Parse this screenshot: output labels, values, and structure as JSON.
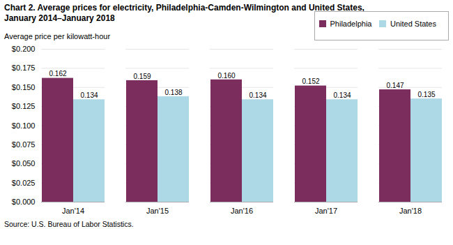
{
  "chart_data": {
    "type": "bar",
    "title": "Chart 2. Average prices for electricity, Philadelphia-Camden-Wilmington  and United States,",
    "subtitle": "January 2014–January 2018",
    "ylabel": "Average price per kilowatt-hour",
    "source": "Source: U.S. Bureau of Labor Statistics.",
    "categories": [
      "Jan'14",
      "Jan'15",
      "Jan'16",
      "Jan'17",
      "Jan'18"
    ],
    "series": [
      {
        "name": "Philadelphia",
        "color": "#7B2D5E",
        "values": [
          0.162,
          0.159,
          0.16,
          0.152,
          0.147
        ],
        "value_labels": [
          "0.162",
          "0.159",
          "0.160",
          "0.152",
          "0.147"
        ]
      },
      {
        "name": "United States",
        "color": "#ADD8E6",
        "values": [
          0.134,
          0.138,
          0.134,
          0.134,
          0.135
        ],
        "value_labels": [
          "0.134",
          "0.138",
          "0.134",
          "0.134",
          "0.135"
        ]
      }
    ],
    "ylim": [
      0,
      0.2
    ],
    "yticks": [
      {
        "value": 0.0,
        "label": "$0.000"
      },
      {
        "value": 0.025,
        "label": "$0.025"
      },
      {
        "value": 0.05,
        "label": "$0.050"
      },
      {
        "value": 0.075,
        "label": "$0.075"
      },
      {
        "value": 0.1,
        "label": "$0.100"
      },
      {
        "value": 0.125,
        "label": "$0.125"
      },
      {
        "value": 0.15,
        "label": "$0.150"
      },
      {
        "value": 0.175,
        "label": "$0.175"
      },
      {
        "value": 0.2,
        "label": "$0.200"
      }
    ],
    "grid": true,
    "legend": "upper right",
    "data_labels": true
  }
}
